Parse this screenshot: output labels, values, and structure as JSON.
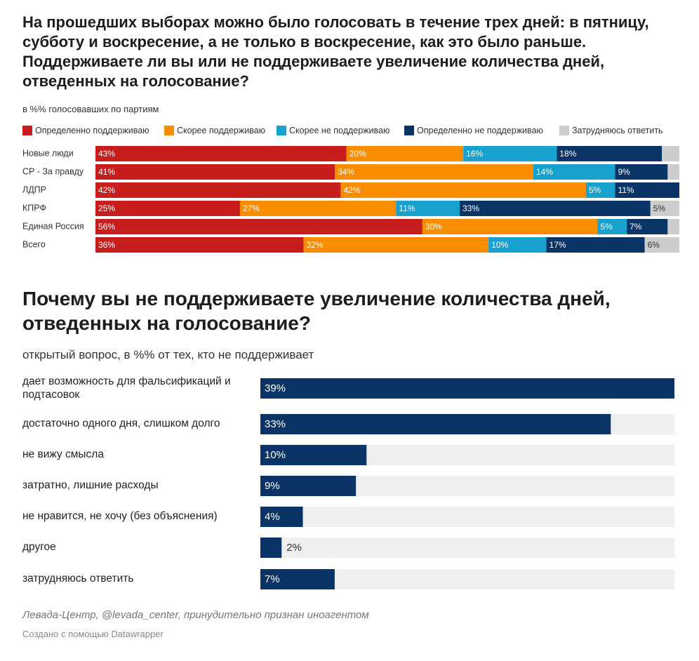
{
  "chart_data": [
    {
      "type": "stacked-bar",
      "title": "На прошедших выборах можно было голосовать в течение трех дней: в пятницу, субботу и воскресение, а не только в воскресение, как это было раньше. Поддерживаете ли вы или не поддерживаете увеличение количества дней, отведенных на голосование?",
      "subtitle": "в %% голосовавших по партиям",
      "categories": [
        "Новые люди",
        "СР - За правду",
        "ЛДПР",
        "КПРФ",
        "Единая Россия",
        "Всего"
      ],
      "series": [
        {
          "name": "Определенно поддерживаю",
          "color": "#c71e1d",
          "values": [
            43,
            41,
            42,
            25,
            56,
            36
          ],
          "value_labels": [
            "43%",
            "41%",
            "42%",
            "25%",
            "56%",
            "36%"
          ]
        },
        {
          "name": "Скорее поддерживаю",
          "color": "#fa8c00",
          "values": [
            20,
            34,
            42,
            27,
            30,
            32
          ],
          "value_labels": [
            "20%",
            "34%",
            "42%",
            "27%",
            "30%",
            "32%"
          ]
        },
        {
          "name": "Скорее не поддерживаю",
          "color": "#18a1cd",
          "values": [
            16,
            14,
            5,
            11,
            5,
            10
          ],
          "value_labels": [
            "16%",
            "14%",
            "5%",
            "11%",
            "5%",
            "10%"
          ]
        },
        {
          "name": "Определенно не поддерживаю",
          "color": "#0b3466",
          "values": [
            18,
            9,
            11,
            33,
            7,
            17
          ],
          "value_labels": [
            "18%",
            "9%",
            "11%",
            "33%",
            "7%",
            "17%"
          ]
        },
        {
          "name": "Затрудняюсь ответить",
          "color": "#cccccc",
          "values": [
            3,
            2,
            0,
            5,
            2,
            6
          ],
          "value_labels": [
            null,
            null,
            null,
            "5%",
            null,
            "6%"
          ]
        }
      ]
    },
    {
      "type": "bar",
      "title": "Почему вы не поддерживаете увеличение количества дней, отведенных на голосование?",
      "subtitle": "открытый вопрос, в %% от тех, кто не поддерживает",
      "categories": [
        "дает возможность для фальсификаций и подтасовок",
        "достаточно одного дня, слишком долго",
        "не вижу смысла",
        "затратно, лишние расходы",
        "не нравится, не хочу (без объяснения)",
        "другое",
        "затрудняюсь ответить"
      ],
      "values": [
        39,
        33,
        10,
        9,
        4,
        2,
        7
      ],
      "value_labels": [
        "39%",
        "33%",
        "10%",
        "9%",
        "4%",
        "2%",
        "7%"
      ],
      "color": "#0b3466"
    }
  ],
  "footer": {
    "source": "Левада-Центр, @levada_center, принудительно признан иноагентом",
    "credit": "Создано с помощью Datawrapper"
  }
}
